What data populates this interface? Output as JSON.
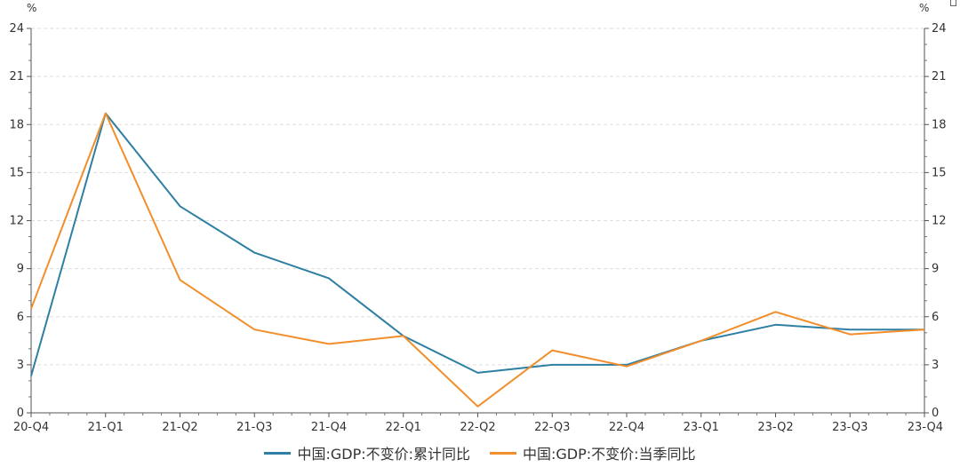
{
  "chart_data": {
    "type": "line",
    "categories": [
      "20-Q4",
      "21-Q1",
      "21-Q2",
      "21-Q3",
      "21-Q4",
      "22-Q1",
      "22-Q2",
      "22-Q3",
      "22-Q4",
      "23-Q1",
      "23-Q2",
      "23-Q3",
      "23-Q4"
    ],
    "series": [
      {
        "name": "中国:GDP:不变价:累计同比",
        "color": "#2e7fa3",
        "values": [
          2.3,
          18.7,
          12.9,
          10.0,
          8.4,
          4.8,
          2.5,
          3.0,
          3.0,
          4.5,
          5.5,
          5.2,
          5.2
        ]
      },
      {
        "name": "中国:GDP:不变价:当季同比",
        "color": "#f28e2b",
        "values": [
          6.5,
          18.7,
          8.3,
          5.2,
          4.3,
          4.8,
          0.4,
          3.9,
          2.9,
          4.5,
          6.3,
          4.9,
          5.2
        ]
      }
    ],
    "ylim": [
      0,
      24
    ],
    "yticks": [
      "0",
      "3",
      "6",
      "9",
      "12",
      "15",
      "18",
      "21",
      "24"
    ],
    "ylabel_left": "%",
    "ylabel_right": "%",
    "grid": true,
    "legend_position": "bottom"
  }
}
